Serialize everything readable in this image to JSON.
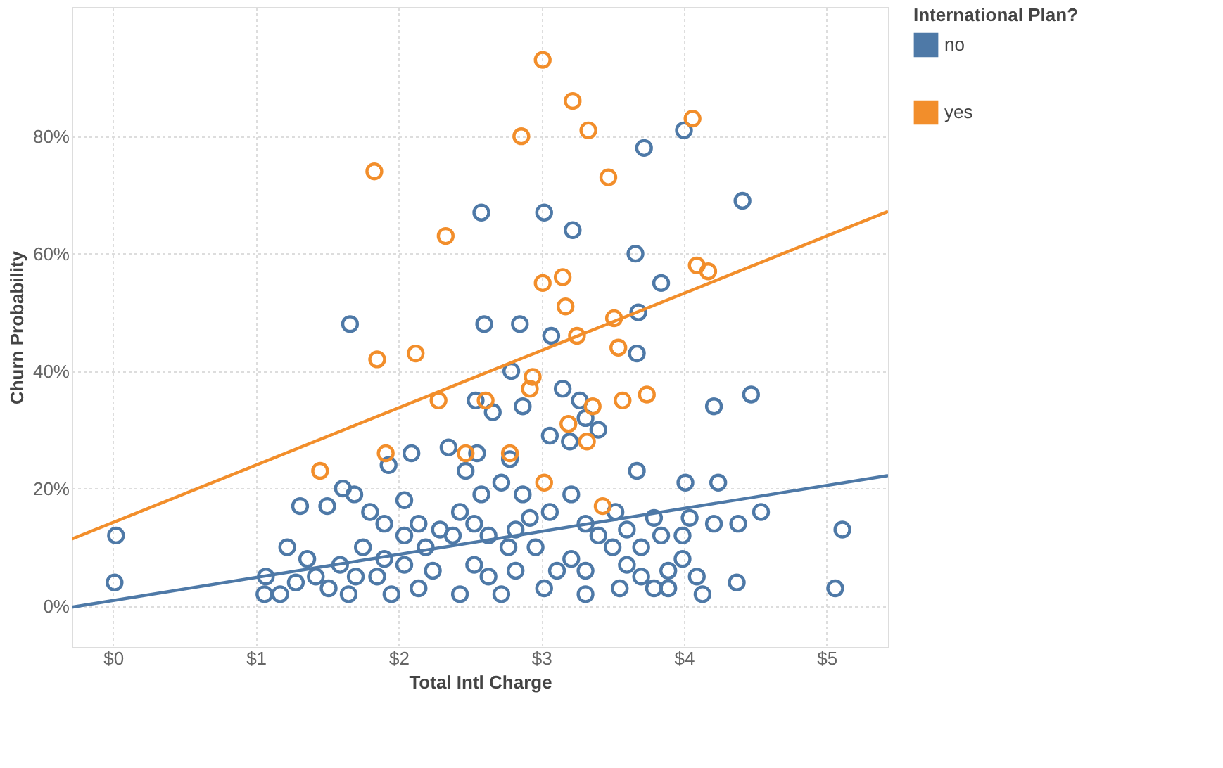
{
  "chart_data": {
    "type": "scatter",
    "xlabel": "Total Intl Charge",
    "ylabel": "Churn Probability",
    "legend_title": "International Plan?",
    "legend": "top right",
    "grid": true,
    "marker": "circle",
    "xlim": [
      -0.29,
      5.43
    ],
    "ylim": [
      -7,
      102
    ],
    "xticks": [
      {
        "value": 0,
        "label": "$0"
      },
      {
        "value": 1,
        "label": "$1"
      },
      {
        "value": 2,
        "label": "$2"
      },
      {
        "value": 3,
        "label": "$3"
      },
      {
        "value": 4,
        "label": "$4"
      },
      {
        "value": 5,
        "label": "$5"
      }
    ],
    "yticks": [
      {
        "value": 0,
        "label": "0%"
      },
      {
        "value": 20,
        "label": "20%"
      },
      {
        "value": 40,
        "label": "40%"
      },
      {
        "value": 60,
        "label": "60%"
      },
      {
        "value": 80,
        "label": "80%"
      }
    ],
    "series": [
      {
        "name": "no",
        "color": "#4e79a7",
        "x": [
          4.0,
          3.72,
          4.41,
          2.58,
          3.02,
          3.22,
          3.66,
          3.84,
          1.66,
          2.6,
          2.85,
          3.07,
          3.68,
          3.67,
          2.79,
          2.54,
          2.66,
          2.87,
          3.15,
          3.27,
          3.31,
          3.4,
          3.06,
          4.21,
          4.47,
          3.2,
          2.09,
          1.93,
          2.35,
          2.55,
          2.47,
          2.78,
          0.02,
          0.01,
          1.22,
          1.06,
          4.37,
          5.06,
          5.11,
          4.54,
          4.24,
          4.01,
          4.21,
          4.38,
          3.67,
          3.52,
          1.61,
          1.31,
          1.5,
          1.69,
          1.8,
          1.9,
          2.04,
          1.75,
          1.59,
          1.42,
          1.28,
          1.17,
          1.51,
          1.65,
          1.85,
          2.04,
          2.19,
          2.29,
          2.43,
          2.58,
          2.72,
          2.87,
          2.92,
          3.06,
          3.21,
          3.31,
          3.4,
          3.5,
          3.6,
          3.7,
          3.79,
          3.89,
          3.99,
          4.09,
          4.13,
          3.89,
          3.55,
          3.31,
          3.02,
          2.72,
          2.43,
          2.14,
          1.95,
          2.24,
          2.53,
          2.63,
          2.82,
          3.11,
          3.21,
          3.31,
          2.77,
          2.96,
          2.63,
          2.53,
          2.38,
          2.04,
          2.14,
          2.82,
          3.6,
          3.79,
          4.04,
          3.7,
          3.84,
          3.99,
          1.7,
          1.9,
          1.36,
          1.07
        ],
        "values": [
          81,
          78,
          69,
          67,
          67,
          64,
          60,
          55,
          48,
          48,
          48,
          46,
          50,
          43,
          40,
          35,
          33,
          34,
          37,
          35,
          32,
          30,
          29,
          34,
          36,
          28,
          26,
          24,
          27,
          26,
          23,
          25,
          12,
          4,
          10,
          2,
          4,
          3,
          13,
          16,
          21,
          21,
          14,
          14,
          23,
          16,
          20,
          17,
          17,
          19,
          16,
          14,
          18,
          10,
          7,
          5,
          4,
          2,
          3,
          2,
          5,
          7,
          10,
          13,
          16,
          19,
          21,
          19,
          15,
          16,
          19,
          14,
          12,
          10,
          7,
          5,
          3,
          6,
          8,
          5,
          2,
          3,
          3,
          2,
          3,
          2,
          2,
          3,
          2,
          6,
          7,
          5,
          6,
          6,
          8,
          6,
          10,
          10,
          12,
          14,
          12,
          12,
          14,
          13,
          13,
          15,
          15,
          10,
          12,
          12,
          5,
          8,
          8,
          5
        ]
      },
      {
        "name": "yes",
        "color": "#f28e2b",
        "x": [
          3.01,
          3.22,
          3.33,
          2.86,
          1.83,
          3.47,
          4.06,
          2.33,
          3.01,
          3.15,
          3.17,
          4.09,
          4.17,
          3.51,
          3.54,
          3.25,
          3.74,
          1.85,
          2.12,
          2.28,
          2.94,
          3.57,
          3.36,
          3.19,
          2.61,
          1.91,
          1.45,
          2.47,
          2.78,
          3.02,
          3.32,
          3.43,
          2.92
        ],
        "values": [
          93,
          86,
          81,
          80,
          74,
          73,
          83,
          63,
          55,
          56,
          51,
          58,
          57,
          49,
          44,
          46,
          36,
          42,
          43,
          35,
          39,
          35,
          34,
          31,
          35,
          26,
          23,
          26,
          26,
          21,
          28,
          17,
          37
        ]
      },
      {
        "type": "line",
        "color": "#4e79a7",
        "line_style": "solid",
        "marker": "none",
        "x": [
          -0.29,
          5.43
        ],
        "values": [
          -0.2,
          22.2
        ]
      },
      {
        "type": "line",
        "color": "#f28e2b",
        "line_style": "solid",
        "marker": "none",
        "x": [
          -0.29,
          5.43
        ],
        "values": [
          11.4,
          67.2
        ]
      }
    ]
  }
}
